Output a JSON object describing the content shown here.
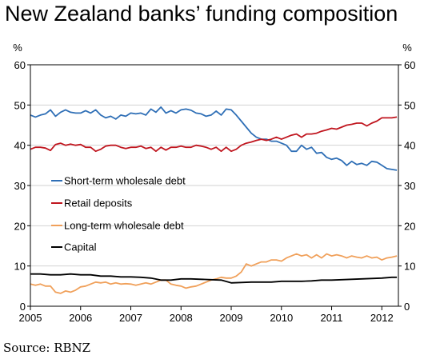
{
  "chart_data": {
    "type": "line",
    "title": "New Zealand banks’ funding composition",
    "left_unit": "%",
    "right_unit": "%",
    "source": "Source: RBNZ",
    "ylim": [
      0,
      60
    ],
    "y_ticks": [
      "0",
      "10",
      "20",
      "30",
      "40",
      "50",
      "60"
    ],
    "xlim": [
      2005,
      2012.33
    ],
    "x_ticks": [
      {
        "v": 2005,
        "label": "2005"
      },
      {
        "v": 2006,
        "label": "2006"
      },
      {
        "v": 2007,
        "label": "2007"
      },
      {
        "v": 2008,
        "label": "2008"
      },
      {
        "v": 2009,
        "label": "2009"
      },
      {
        "v": 2010,
        "label": "2010"
      },
      {
        "v": 2011,
        "label": "2011"
      },
      {
        "v": 2012,
        "label": "2012"
      }
    ],
    "grid": "horizontal",
    "legend_position": "middle-left",
    "series": [
      {
        "name": "Short-term wholesale debt",
        "color": "#2f6fb6",
        "points": [
          [
            2005.0,
            47.5
          ],
          [
            2005.1,
            47.0
          ],
          [
            2005.2,
            47.5
          ],
          [
            2005.3,
            47.8
          ],
          [
            2005.4,
            48.8
          ],
          [
            2005.5,
            47.2
          ],
          [
            2005.6,
            48.2
          ],
          [
            2005.7,
            48.8
          ],
          [
            2005.8,
            48.2
          ],
          [
            2005.9,
            48.0
          ],
          [
            2006.0,
            48.0
          ],
          [
            2006.1,
            48.6
          ],
          [
            2006.2,
            48.0
          ],
          [
            2006.3,
            48.8
          ],
          [
            2006.4,
            47.5
          ],
          [
            2006.5,
            46.8
          ],
          [
            2006.6,
            47.2
          ],
          [
            2006.7,
            46.5
          ],
          [
            2006.8,
            47.5
          ],
          [
            2006.9,
            47.2
          ],
          [
            2007.0,
            48.0
          ],
          [
            2007.1,
            47.8
          ],
          [
            2007.2,
            48.0
          ],
          [
            2007.3,
            47.5
          ],
          [
            2007.4,
            49.0
          ],
          [
            2007.5,
            48.2
          ],
          [
            2007.6,
            49.5
          ],
          [
            2007.7,
            48.0
          ],
          [
            2007.8,
            48.6
          ],
          [
            2007.9,
            48.0
          ],
          [
            2008.0,
            48.8
          ],
          [
            2008.1,
            49.0
          ],
          [
            2008.2,
            48.7
          ],
          [
            2008.3,
            48.0
          ],
          [
            2008.4,
            47.8
          ],
          [
            2008.5,
            47.2
          ],
          [
            2008.6,
            47.5
          ],
          [
            2008.7,
            48.5
          ],
          [
            2008.8,
            47.5
          ],
          [
            2008.9,
            49.0
          ],
          [
            2009.0,
            48.8
          ],
          [
            2009.1,
            47.5
          ],
          [
            2009.2,
            46.0
          ],
          [
            2009.3,
            44.5
          ],
          [
            2009.4,
            43.0
          ],
          [
            2009.5,
            42.0
          ],
          [
            2009.6,
            41.5
          ],
          [
            2009.7,
            41.5
          ],
          [
            2009.8,
            41.0
          ],
          [
            2009.9,
            41.0
          ],
          [
            2010.0,
            40.5
          ],
          [
            2010.1,
            40.0
          ],
          [
            2010.2,
            38.5
          ],
          [
            2010.3,
            38.5
          ],
          [
            2010.4,
            40.0
          ],
          [
            2010.5,
            39.0
          ],
          [
            2010.6,
            39.5
          ],
          [
            2010.7,
            38.0
          ],
          [
            2010.8,
            38.2
          ],
          [
            2010.9,
            37.0
          ],
          [
            2011.0,
            36.5
          ],
          [
            2011.1,
            36.8
          ],
          [
            2011.2,
            36.2
          ],
          [
            2011.3,
            35.0
          ],
          [
            2011.4,
            36.0
          ],
          [
            2011.5,
            35.2
          ],
          [
            2011.6,
            35.5
          ],
          [
            2011.7,
            35.0
          ],
          [
            2011.8,
            36.0
          ],
          [
            2011.9,
            35.8
          ],
          [
            2012.0,
            35.0
          ],
          [
            2012.1,
            34.2
          ],
          [
            2012.2,
            34.0
          ],
          [
            2012.3,
            33.8
          ]
        ]
      },
      {
        "name": "Retail deposits",
        "color": "#c0161f",
        "points": [
          [
            2005.0,
            39.0
          ],
          [
            2005.1,
            39.5
          ],
          [
            2005.2,
            39.5
          ],
          [
            2005.3,
            39.3
          ],
          [
            2005.4,
            38.7
          ],
          [
            2005.5,
            40.2
          ],
          [
            2005.6,
            40.5
          ],
          [
            2005.7,
            40.0
          ],
          [
            2005.8,
            40.3
          ],
          [
            2005.9,
            40.0
          ],
          [
            2006.0,
            40.2
          ],
          [
            2006.1,
            39.5
          ],
          [
            2006.2,
            39.5
          ],
          [
            2006.3,
            38.5
          ],
          [
            2006.4,
            39.0
          ],
          [
            2006.5,
            39.8
          ],
          [
            2006.6,
            40.0
          ],
          [
            2006.7,
            40.0
          ],
          [
            2006.8,
            39.5
          ],
          [
            2006.9,
            39.2
          ],
          [
            2007.0,
            39.5
          ],
          [
            2007.1,
            39.5
          ],
          [
            2007.2,
            39.8
          ],
          [
            2007.3,
            39.2
          ],
          [
            2007.4,
            39.5
          ],
          [
            2007.5,
            38.5
          ],
          [
            2007.6,
            39.5
          ],
          [
            2007.7,
            38.8
          ],
          [
            2007.8,
            39.5
          ],
          [
            2007.9,
            39.5
          ],
          [
            2008.0,
            39.8
          ],
          [
            2008.1,
            39.5
          ],
          [
            2008.2,
            39.5
          ],
          [
            2008.3,
            40.0
          ],
          [
            2008.4,
            39.8
          ],
          [
            2008.5,
            39.5
          ],
          [
            2008.6,
            39.0
          ],
          [
            2008.7,
            39.5
          ],
          [
            2008.8,
            38.5
          ],
          [
            2008.9,
            39.5
          ],
          [
            2009.0,
            38.5
          ],
          [
            2009.1,
            39.0
          ],
          [
            2009.2,
            40.0
          ],
          [
            2009.3,
            40.5
          ],
          [
            2009.4,
            40.8
          ],
          [
            2009.5,
            41.2
          ],
          [
            2009.6,
            41.5
          ],
          [
            2009.7,
            41.2
          ],
          [
            2009.8,
            41.5
          ],
          [
            2009.9,
            42.0
          ],
          [
            2010.0,
            41.5
          ],
          [
            2010.1,
            42.0
          ],
          [
            2010.2,
            42.5
          ],
          [
            2010.3,
            42.8
          ],
          [
            2010.4,
            42.0
          ],
          [
            2010.5,
            42.8
          ],
          [
            2010.6,
            42.8
          ],
          [
            2010.7,
            43.0
          ],
          [
            2010.8,
            43.5
          ],
          [
            2010.9,
            43.8
          ],
          [
            2011.0,
            44.2
          ],
          [
            2011.1,
            44.0
          ],
          [
            2011.2,
            44.5
          ],
          [
            2011.3,
            45.0
          ],
          [
            2011.4,
            45.2
          ],
          [
            2011.5,
            45.5
          ],
          [
            2011.6,
            45.5
          ],
          [
            2011.7,
            44.8
          ],
          [
            2011.8,
            45.5
          ],
          [
            2011.9,
            46.0
          ],
          [
            2012.0,
            46.8
          ],
          [
            2012.1,
            46.8
          ],
          [
            2012.2,
            46.8
          ],
          [
            2012.3,
            47.0
          ]
        ]
      },
      {
        "name": "Long-term wholesale debt",
        "color": "#f0a05a",
        "points": [
          [
            2005.0,
            5.5
          ],
          [
            2005.1,
            5.2
          ],
          [
            2005.2,
            5.5
          ],
          [
            2005.3,
            5.0
          ],
          [
            2005.4,
            5.0
          ],
          [
            2005.5,
            3.5
          ],
          [
            2005.6,
            3.2
          ],
          [
            2005.7,
            3.8
          ],
          [
            2005.8,
            3.5
          ],
          [
            2005.9,
            4.0
          ],
          [
            2006.0,
            4.8
          ],
          [
            2006.1,
            5.0
          ],
          [
            2006.2,
            5.5
          ],
          [
            2006.3,
            6.0
          ],
          [
            2006.4,
            5.8
          ],
          [
            2006.5,
            6.0
          ],
          [
            2006.6,
            5.5
          ],
          [
            2006.7,
            5.8
          ],
          [
            2006.8,
            5.5
          ],
          [
            2006.9,
            5.6
          ],
          [
            2007.0,
            5.5
          ],
          [
            2007.1,
            5.2
          ],
          [
            2007.2,
            5.5
          ],
          [
            2007.3,
            5.8
          ],
          [
            2007.4,
            5.5
          ],
          [
            2007.5,
            6.0
          ],
          [
            2007.6,
            6.5
          ],
          [
            2007.7,
            6.5
          ],
          [
            2007.8,
            5.5
          ],
          [
            2007.9,
            5.2
          ],
          [
            2008.0,
            5.0
          ],
          [
            2008.1,
            4.5
          ],
          [
            2008.2,
            4.8
          ],
          [
            2008.3,
            5.0
          ],
          [
            2008.4,
            5.5
          ],
          [
            2008.5,
            6.0
          ],
          [
            2008.6,
            6.5
          ],
          [
            2008.7,
            6.8
          ],
          [
            2008.8,
            7.2
          ],
          [
            2008.9,
            7.0
          ],
          [
            2009.0,
            7.0
          ],
          [
            2009.1,
            7.5
          ],
          [
            2009.2,
            8.5
          ],
          [
            2009.3,
            10.5
          ],
          [
            2009.4,
            10.0
          ],
          [
            2009.5,
            10.5
          ],
          [
            2009.6,
            11.0
          ],
          [
            2009.7,
            11.0
          ],
          [
            2009.8,
            11.5
          ],
          [
            2009.9,
            11.5
          ],
          [
            2010.0,
            11.2
          ],
          [
            2010.1,
            12.0
          ],
          [
            2010.2,
            12.5
          ],
          [
            2010.3,
            13.0
          ],
          [
            2010.4,
            12.5
          ],
          [
            2010.5,
            12.8
          ],
          [
            2010.6,
            12.0
          ],
          [
            2010.7,
            12.8
          ],
          [
            2010.8,
            12.0
          ],
          [
            2010.9,
            13.0
          ],
          [
            2011.0,
            12.5
          ],
          [
            2011.1,
            12.8
          ],
          [
            2011.2,
            12.5
          ],
          [
            2011.3,
            12.0
          ],
          [
            2011.4,
            12.5
          ],
          [
            2011.5,
            12.2
          ],
          [
            2011.6,
            12.0
          ],
          [
            2011.7,
            12.5
          ],
          [
            2011.8,
            12.0
          ],
          [
            2011.9,
            12.2
          ],
          [
            2012.0,
            11.5
          ],
          [
            2012.1,
            12.0
          ],
          [
            2012.2,
            12.2
          ],
          [
            2012.3,
            12.5
          ]
        ]
      },
      {
        "name": "Capital",
        "color": "#000000",
        "points": [
          [
            2005.0,
            8.0
          ],
          [
            2005.2,
            8.0
          ],
          [
            2005.4,
            7.8
          ],
          [
            2005.6,
            7.8
          ],
          [
            2005.8,
            8.0
          ],
          [
            2006.0,
            7.8
          ],
          [
            2006.2,
            7.8
          ],
          [
            2006.4,
            7.5
          ],
          [
            2006.6,
            7.5
          ],
          [
            2006.8,
            7.3
          ],
          [
            2007.0,
            7.3
          ],
          [
            2007.2,
            7.2
          ],
          [
            2007.4,
            7.0
          ],
          [
            2007.6,
            6.5
          ],
          [
            2007.8,
            6.5
          ],
          [
            2008.0,
            6.8
          ],
          [
            2008.2,
            6.8
          ],
          [
            2008.4,
            6.7
          ],
          [
            2008.6,
            6.6
          ],
          [
            2008.8,
            6.5
          ],
          [
            2009.0,
            5.8
          ],
          [
            2009.2,
            5.9
          ],
          [
            2009.4,
            6.0
          ],
          [
            2009.6,
            6.0
          ],
          [
            2009.8,
            6.0
          ],
          [
            2010.0,
            6.2
          ],
          [
            2010.2,
            6.2
          ],
          [
            2010.4,
            6.2
          ],
          [
            2010.6,
            6.3
          ],
          [
            2010.8,
            6.5
          ],
          [
            2011.0,
            6.5
          ],
          [
            2011.2,
            6.6
          ],
          [
            2011.4,
            6.7
          ],
          [
            2011.6,
            6.8
          ],
          [
            2011.8,
            6.9
          ],
          [
            2012.0,
            7.0
          ],
          [
            2012.2,
            7.2
          ],
          [
            2012.3,
            7.2
          ]
        ]
      }
    ]
  }
}
